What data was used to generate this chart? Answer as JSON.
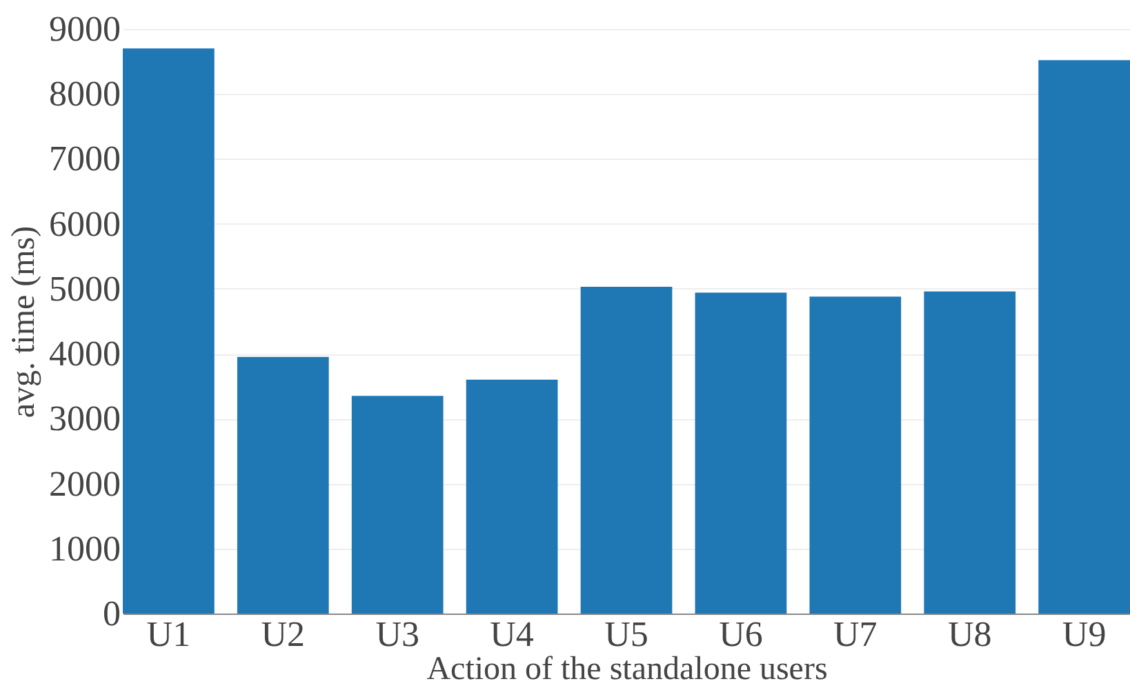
{
  "chart_data": {
    "type": "bar",
    "xlabel": "Action of the standalone users",
    "ylabel": "avg. time (ms)",
    "categories": [
      "U1",
      "U2",
      "U3",
      "U4",
      "U5",
      "U6",
      "U7",
      "U8",
      "U9"
    ],
    "values": [
      8700,
      3950,
      3350,
      3600,
      5030,
      4940,
      4880,
      4960,
      8520
    ],
    "color": "#1f77b4",
    "ylim": [
      0,
      9000
    ],
    "yticks": [
      0,
      1000,
      2000,
      3000,
      4000,
      5000,
      6000,
      7000,
      8000,
      9000
    ],
    "grid": "y"
  }
}
